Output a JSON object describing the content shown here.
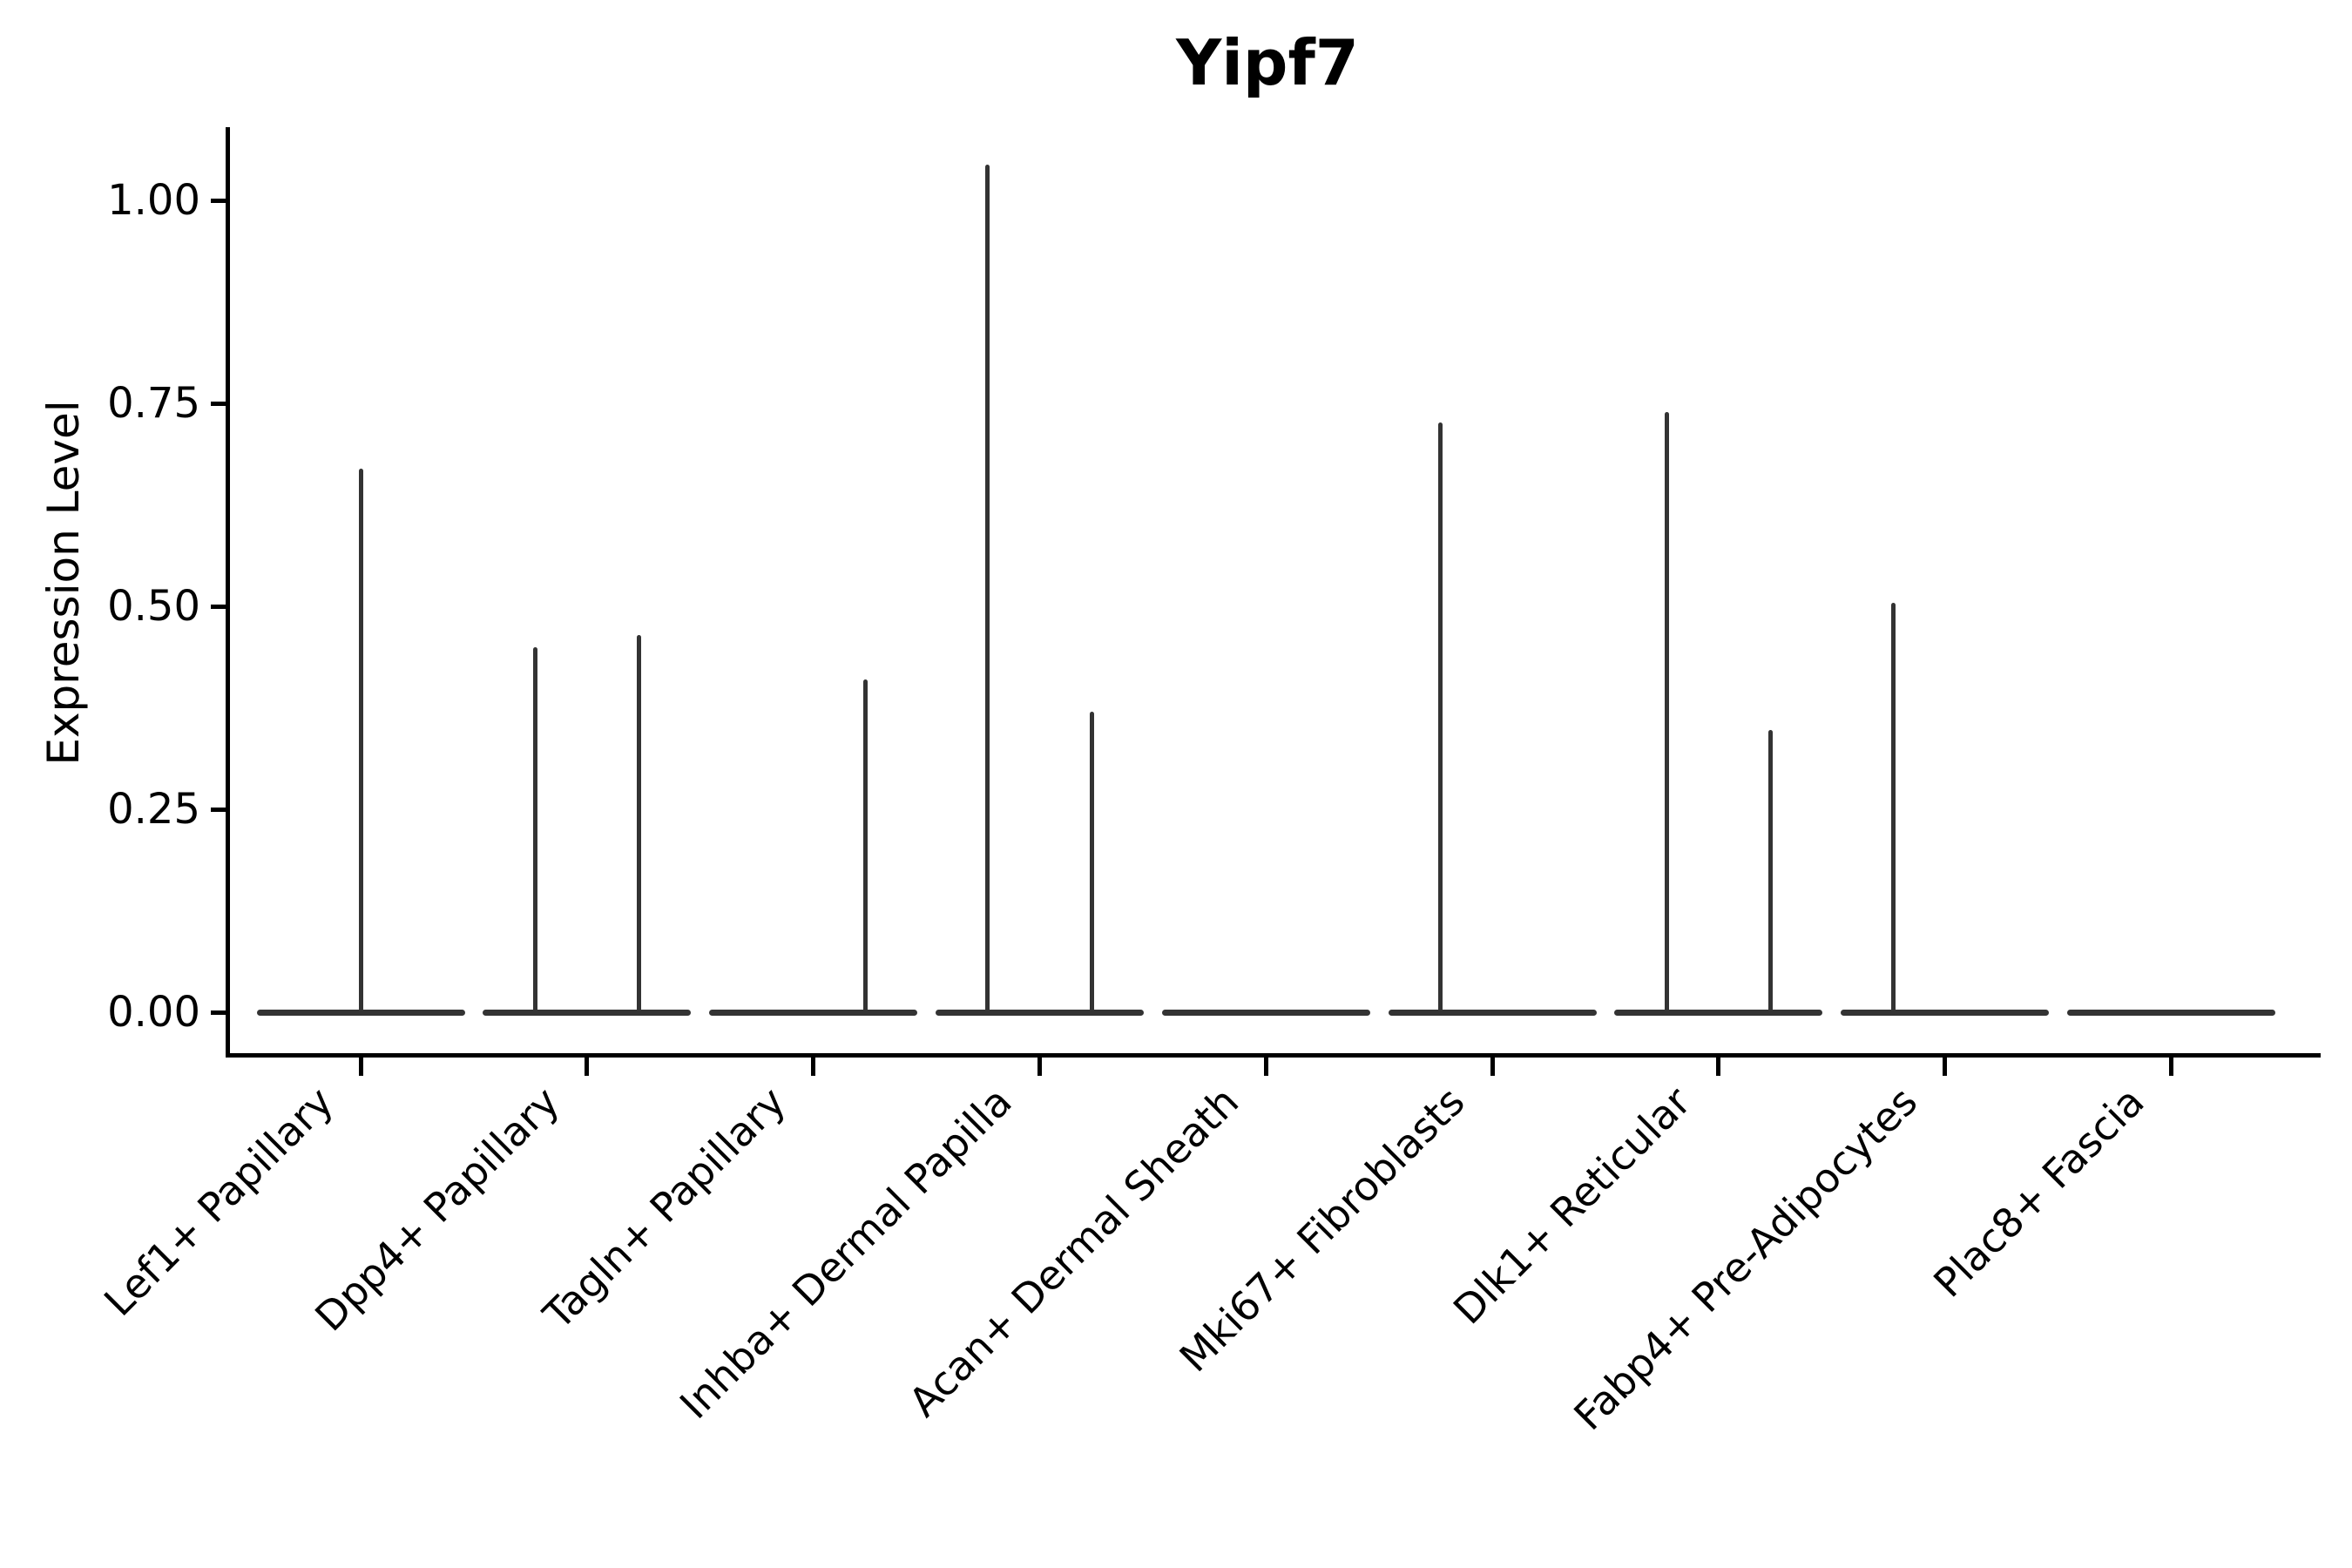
{
  "title": "Yipf7",
  "y_axis": {
    "label": "Expression Level",
    "ticks": [
      {
        "label": "1.00",
        "value": 1.0
      },
      {
        "label": "0.75",
        "value": 0.75
      },
      {
        "label": "0.50",
        "value": 0.5
      },
      {
        "label": "0.25",
        "value": 0.25
      },
      {
        "label": "0.00",
        "value": 0.0
      }
    ]
  },
  "colors": {
    "violin": "#333333",
    "axis": "#000000",
    "text": "#000000",
    "background": "#ffffff"
  },
  "chart_data": {
    "type": "violin",
    "title": "Yipf7",
    "xlabel": "",
    "ylabel": "Expression Level",
    "ylim": [
      0,
      1.09
    ],
    "yticks": [
      0.0,
      0.25,
      0.5,
      0.75,
      1.0
    ],
    "grid": false,
    "legend": "none",
    "categories": [
      "Lef1+ Papillary",
      "Dpp4+ Papillary",
      "Tagln+ Papillary",
      "Inhba+ Dermal Papilla",
      "Acan+ Dermal Sheath",
      "Mki67+ Fibroblasts",
      "Dlk1+ Reticular",
      "Fabp4+ Pre-Adipocytes",
      "Plac8+ Fascia"
    ],
    "violins": [
      {
        "category": "Lef1+ Papillary",
        "baseline_value": 0.0,
        "spikes": [
          {
            "offset": 0.0,
            "value": 0.67
          }
        ]
      },
      {
        "category": "Dpp4+ Papillary",
        "baseline_value": 0.0,
        "spikes": [
          {
            "offset": -0.25,
            "value": 0.45
          },
          {
            "offset": 0.25,
            "value": 0.465
          }
        ]
      },
      {
        "category": "Tagln+ Papillary",
        "baseline_value": 0.0,
        "spikes": [
          {
            "offset": 0.25,
            "value": 0.41
          }
        ]
      },
      {
        "category": "Inhba+ Dermal Papilla",
        "baseline_value": 0.0,
        "spikes": [
          {
            "offset": -0.25,
            "value": 1.044
          },
          {
            "offset": 0.25,
            "value": 0.37
          }
        ]
      },
      {
        "category": "Acan+ Dermal Sheath",
        "baseline_value": 0.0,
        "spikes": []
      },
      {
        "category": "Mki67+ Fibroblasts",
        "baseline_value": 0.0,
        "spikes": [
          {
            "offset": -0.25,
            "value": 0.726
          }
        ]
      },
      {
        "category": "Dlk1+ Reticular",
        "baseline_value": 0.0,
        "spikes": [
          {
            "offset": -0.25,
            "value": 0.739
          },
          {
            "offset": 0.25,
            "value": 0.348
          }
        ]
      },
      {
        "category": "Fabp4+ Pre-Adipocytes",
        "baseline_value": 0.0,
        "spikes": [
          {
            "offset": -0.25,
            "value": 0.504
          }
        ]
      },
      {
        "category": "Plac8+ Fascia",
        "baseline_value": 0.0,
        "spikes": []
      }
    ]
  }
}
